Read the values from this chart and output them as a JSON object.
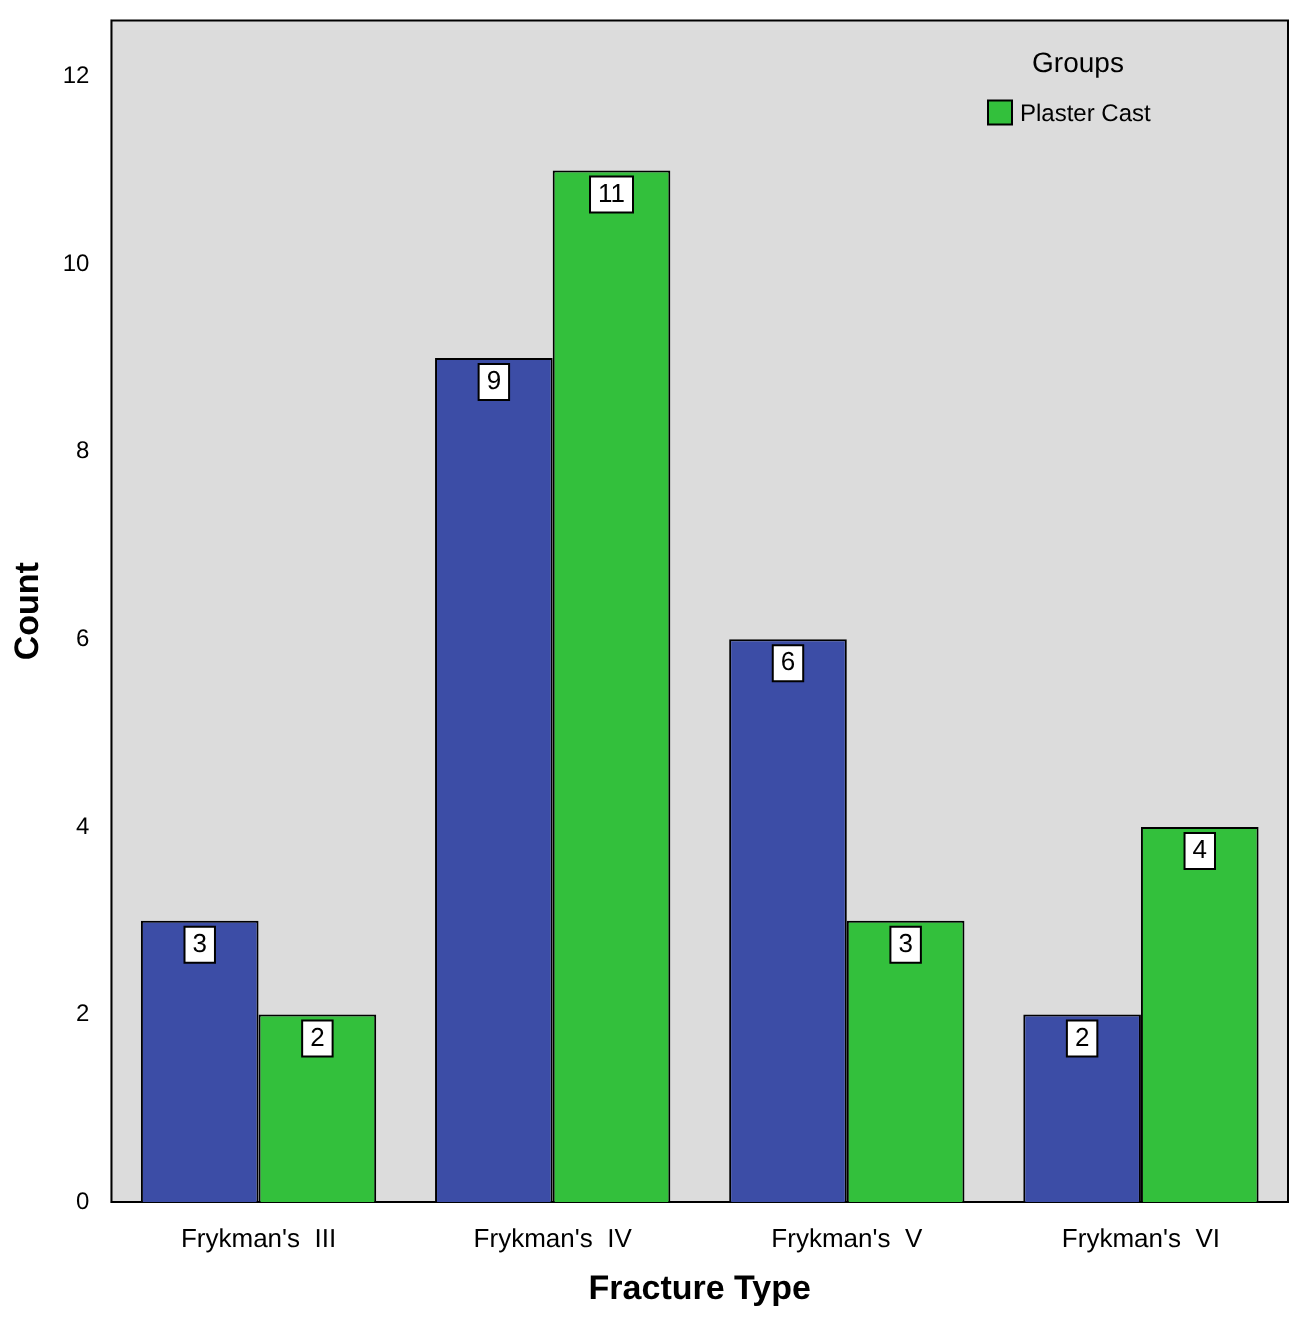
{
  "chart_data": {
    "type": "bar",
    "xlabel": "Fracture Type",
    "ylabel": "Count",
    "legend_title": "Groups",
    "categories": [
      "Frykman's  III",
      "Frykman's  IV",
      "Frykman's  V",
      "Frykman's  VI"
    ],
    "series": [
      {
        "color": "#3c4da6",
        "values": [
          3,
          9,
          6,
          2
        ]
      },
      {
        "name": "Plaster Cast",
        "color": "#33c03c",
        "values": [
          2,
          11,
          3,
          4
        ]
      }
    ],
    "ylim": [
      0,
      12.6
    ],
    "yticks": [
      0,
      2,
      4,
      6,
      8,
      10,
      12
    ],
    "grid": false,
    "legend": "top right",
    "data_labels": true
  }
}
